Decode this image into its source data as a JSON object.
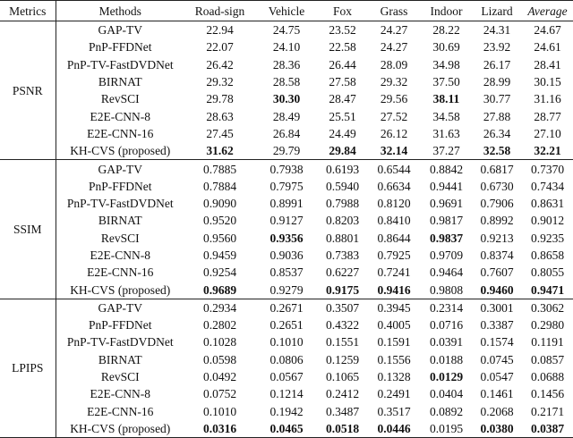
{
  "table": {
    "header": [
      "Metrics",
      "Methods",
      "Road-sign",
      "Vehicle",
      "Fox",
      "Grass",
      "Indoor",
      "Lizard",
      "Average"
    ],
    "groups": [
      {
        "metric": "PSNR",
        "rows": [
          {
            "method": "GAP-TV",
            "values": [
              "22.94",
              "24.75",
              "23.52",
              "24.27",
              "28.22",
              "24.31",
              "24.67"
            ]
          },
          {
            "method": "PnP-FFDNet",
            "values": [
              "22.07",
              "24.10",
              "22.58",
              "24.27",
              "30.69",
              "23.92",
              "24.61"
            ]
          },
          {
            "method": "PnP-TV-FastDVDNet",
            "values": [
              "26.42",
              "28.36",
              "26.44",
              "28.09",
              "34.98",
              "26.17",
              "28.41"
            ]
          },
          {
            "method": "BIRNAT",
            "values": [
              "29.32",
              "28.58",
              "27.58",
              "29.32",
              "37.50",
              "28.99",
              "30.15"
            ]
          },
          {
            "method": "RevSCI",
            "values": [
              "29.78",
              "30.30",
              "28.47",
              "29.56",
              "38.11",
              "30.77",
              "31.16"
            ],
            "bold": [
              1,
              4
            ]
          },
          {
            "method": "E2E-CNN-8",
            "values": [
              "28.63",
              "28.49",
              "25.51",
              "27.52",
              "34.58",
              "27.88",
              "28.77"
            ]
          },
          {
            "method": "E2E-CNN-16",
            "values": [
              "27.45",
              "26.84",
              "24.49",
              "26.12",
              "31.63",
              "26.34",
              "27.10"
            ]
          },
          {
            "method": "KH-CVS (proposed)",
            "values": [
              "31.62",
              "29.79",
              "29.84",
              "32.14",
              "37.27",
              "32.58",
              "32.21"
            ],
            "bold": [
              0,
              2,
              3,
              5,
              6
            ]
          }
        ]
      },
      {
        "metric": "SSIM",
        "rows": [
          {
            "method": "GAP-TV",
            "values": [
              "0.7885",
              "0.7938",
              "0.6193",
              "0.6544",
              "0.8842",
              "0.6817",
              "0.7370"
            ]
          },
          {
            "method": "PnP-FFDNet",
            "values": [
              "0.7884",
              "0.7975",
              "0.5940",
              "0.6634",
              "0.9441",
              "0.6730",
              "0.7434"
            ]
          },
          {
            "method": "PnP-TV-FastDVDNet",
            "values": [
              "0.9090",
              "0.8991",
              "0.7988",
              "0.8120",
              "0.9691",
              "0.7906",
              "0.8631"
            ]
          },
          {
            "method": "BIRNAT",
            "values": [
              "0.9520",
              "0.9127",
              "0.8203",
              "0.8410",
              "0.9817",
              "0.8992",
              "0.9012"
            ]
          },
          {
            "method": "RevSCI",
            "values": [
              "0.9560",
              "0.9356",
              "0.8801",
              "0.8644",
              "0.9837",
              "0.9213",
              "0.9235"
            ],
            "bold": [
              1,
              4
            ]
          },
          {
            "method": "E2E-CNN-8",
            "values": [
              "0.9459",
              "0.9036",
              "0.7383",
              "0.7925",
              "0.9709",
              "0.8374",
              "0.8658"
            ]
          },
          {
            "method": "E2E-CNN-16",
            "values": [
              "0.9254",
              "0.8537",
              "0.6227",
              "0.7241",
              "0.9464",
              "0.7607",
              "0.8055"
            ]
          },
          {
            "method": "KH-CVS (proposed)",
            "values": [
              "0.9689",
              "0.9279",
              "0.9175",
              "0.9416",
              "0.9808",
              "0.9460",
              "0.9471"
            ],
            "bold": [
              0,
              2,
              3,
              5,
              6
            ]
          }
        ]
      },
      {
        "metric": "LPIPS",
        "rows": [
          {
            "method": "GAP-TV",
            "values": [
              "0.2934",
              "0.2671",
              "0.3507",
              "0.3945",
              "0.2314",
              "0.3001",
              "0.3062"
            ]
          },
          {
            "method": "PnP-FFDNet",
            "values": [
              "0.2802",
              "0.2651",
              "0.4322",
              "0.4005",
              "0.0716",
              "0.3387",
              "0.2980"
            ]
          },
          {
            "method": "PnP-TV-FastDVDNet",
            "values": [
              "0.1028",
              "0.1010",
              "0.1551",
              "0.1591",
              "0.0391",
              "0.1574",
              "0.1191"
            ]
          },
          {
            "method": "BIRNAT",
            "values": [
              "0.0598",
              "0.0806",
              "0.1259",
              "0.1556",
              "0.0188",
              "0.0745",
              "0.0857"
            ]
          },
          {
            "method": "RevSCI",
            "values": [
              "0.0492",
              "0.0567",
              "0.1065",
              "0.1328",
              "0.0129",
              "0.0547",
              "0.0688"
            ],
            "bold": [
              4
            ]
          },
          {
            "method": "E2E-CNN-8",
            "values": [
              "0.0752",
              "0.1214",
              "0.2412",
              "0.2491",
              "0.0404",
              "0.1461",
              "0.1456"
            ]
          },
          {
            "method": "E2E-CNN-16",
            "values": [
              "0.1010",
              "0.1942",
              "0.3487",
              "0.3517",
              "0.0892",
              "0.2068",
              "0.2171"
            ]
          },
          {
            "method": "KH-CVS (proposed)",
            "values": [
              "0.0316",
              "0.0465",
              "0.0518",
              "0.0446",
              "0.0195",
              "0.0380",
              "0.0387"
            ],
            "bold": [
              0,
              1,
              2,
              3,
              5,
              6
            ]
          }
        ]
      }
    ]
  }
}
